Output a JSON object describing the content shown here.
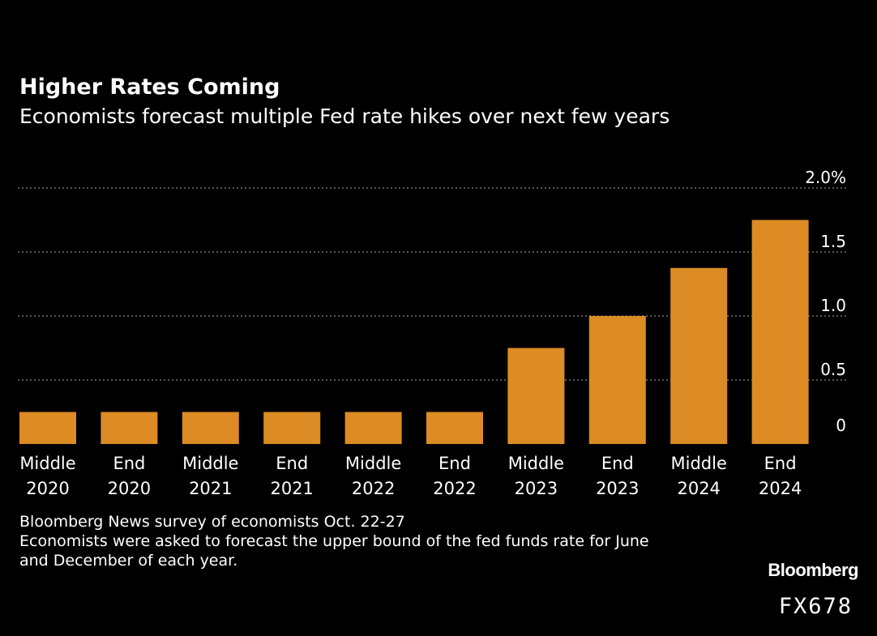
{
  "header": {
    "title": "Higher Rates Coming",
    "subtitle": "Economists forecast multiple Fed rate hikes over next few years"
  },
  "footnotes": {
    "line1": "Bloomberg News survey of economists Oct. 22-27",
    "line2": "Economists were asked to forecast the upper bound of the fed funds rate for June",
    "line3": "and December of each year."
  },
  "branding": {
    "logo_text": "Bloomberg",
    "code": "FX678"
  },
  "colors": {
    "background": "#000000",
    "bar": "#dd8b25",
    "gridline": "#8a8a8a",
    "text": "#ffffff"
  },
  "chart_data": {
    "type": "bar",
    "categories": [
      [
        "Middle",
        "2020"
      ],
      [
        "End",
        "2020"
      ],
      [
        "Middle",
        "2021"
      ],
      [
        "End",
        "2021"
      ],
      [
        "Middle",
        "2022"
      ],
      [
        "End",
        "2022"
      ],
      [
        "Middle",
        "2023"
      ],
      [
        "End",
        "2023"
      ],
      [
        "Middle",
        "2024"
      ],
      [
        "End",
        "2024"
      ]
    ],
    "values": [
      0.25,
      0.25,
      0.25,
      0.25,
      0.25,
      0.25,
      0.75,
      1.0,
      1.375,
      1.75
    ],
    "ylim": [
      0,
      2.0
    ],
    "yticks": [
      {
        "value": 0,
        "label": "0"
      },
      {
        "value": 0.5,
        "label": "0.5"
      },
      {
        "value": 1.0,
        "label": "1.0"
      },
      {
        "value": 1.5,
        "label": "1.5"
      },
      {
        "value": 2.0,
        "label": "2.0%"
      }
    ],
    "grid": true,
    "y_axis_side": "right",
    "title": "Higher Rates Coming",
    "subtitle": "Economists forecast multiple Fed rate hikes over next few years"
  }
}
